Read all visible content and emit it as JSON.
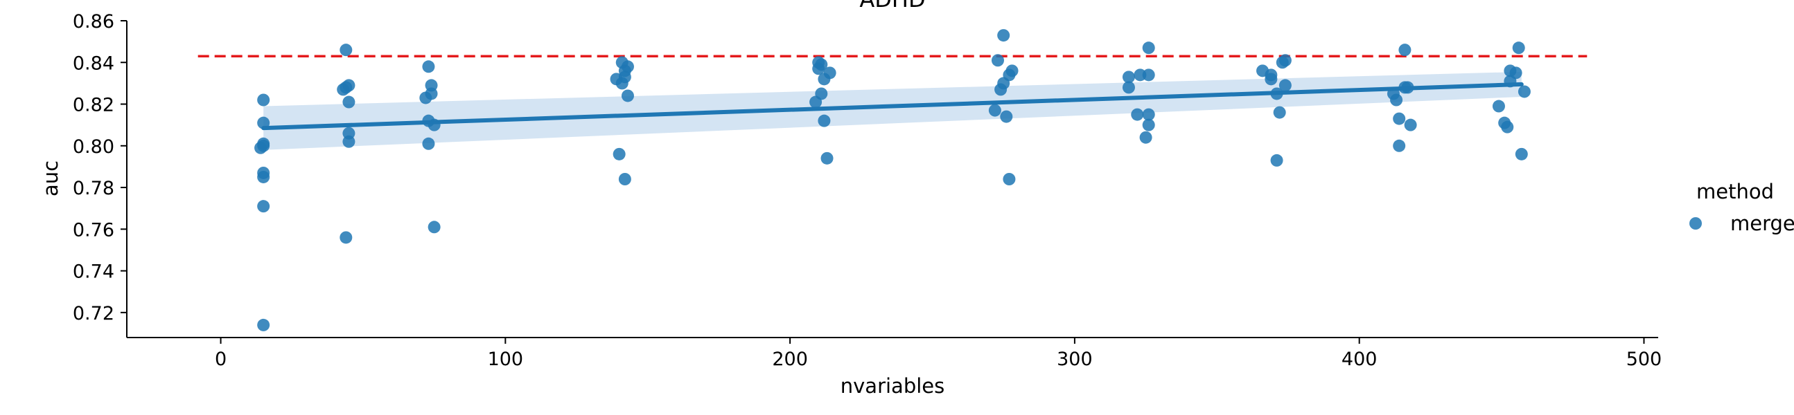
{
  "chart_data": {
    "type": "scatter",
    "title": "ADHD",
    "xlabel": "nvariables",
    "ylabel": "auc",
    "xlim": [
      -33,
      505
    ],
    "ylim": [
      0.708,
      0.86
    ],
    "xticks": [
      0,
      100,
      200,
      300,
      400,
      500
    ],
    "yticks": [
      0.72,
      0.74,
      0.76,
      0.78,
      0.8,
      0.82,
      0.84,
      0.86
    ],
    "grid": false,
    "legend": {
      "title": "method",
      "entries": [
        "merge"
      ],
      "position": "right"
    },
    "colors": {
      "points": "#1f77b4",
      "regression": "#1f77b4",
      "band": "#c6dbef",
      "reference": "#e41a1c"
    },
    "reference_line": {
      "y": 0.843,
      "x_range": [
        -8,
        480
      ],
      "style": "dashed"
    },
    "regression": {
      "x_range": [
        15,
        457
      ],
      "y_start": 0.8085,
      "y_end": 0.8295,
      "ci_start": [
        0.798,
        0.819
      ],
      "ci_end": [
        0.8235,
        0.8355
      ]
    },
    "series": [
      {
        "name": "merge",
        "points": [
          [
            15,
            0.714
          ],
          [
            15,
            0.771
          ],
          [
            15,
            0.785
          ],
          [
            15,
            0.787
          ],
          [
            14,
            0.799
          ],
          [
            15,
            0.8
          ],
          [
            15,
            0.801
          ],
          [
            15,
            0.811
          ],
          [
            15,
            0.822
          ],
          [
            44,
            0.756
          ],
          [
            45,
            0.802
          ],
          [
            45,
            0.806
          ],
          [
            45,
            0.821
          ],
          [
            43,
            0.827
          ],
          [
            44,
            0.828
          ],
          [
            45,
            0.829
          ],
          [
            44,
            0.846
          ],
          [
            75,
            0.761
          ],
          [
            73,
            0.801
          ],
          [
            73,
            0.812
          ],
          [
            75,
            0.81
          ],
          [
            72,
            0.823
          ],
          [
            74,
            0.825
          ],
          [
            74,
            0.829
          ],
          [
            73,
            0.838
          ],
          [
            142,
            0.784
          ],
          [
            140,
            0.796
          ],
          [
            139,
            0.832
          ],
          [
            141,
            0.83
          ],
          [
            142,
            0.833
          ],
          [
            142,
            0.836
          ],
          [
            143,
            0.838
          ],
          [
            141,
            0.84
          ],
          [
            143,
            0.824
          ],
          [
            213,
            0.794
          ],
          [
            212,
            0.812
          ],
          [
            211,
            0.825
          ],
          [
            209,
            0.821
          ],
          [
            212,
            0.832
          ],
          [
            214,
            0.835
          ],
          [
            210,
            0.837
          ],
          [
            211,
            0.839
          ],
          [
            210,
            0.84
          ],
          [
            277,
            0.784
          ],
          [
            276,
            0.814
          ],
          [
            272,
            0.817
          ],
          [
            274,
            0.827
          ],
          [
            275,
            0.83
          ],
          [
            277,
            0.834
          ],
          [
            278,
            0.836
          ],
          [
            273,
            0.841
          ],
          [
            275,
            0.853
          ],
          [
            325,
            0.804
          ],
          [
            326,
            0.81
          ],
          [
            322,
            0.815
          ],
          [
            326,
            0.815
          ],
          [
            319,
            0.828
          ],
          [
            319,
            0.833
          ],
          [
            323,
            0.834
          ],
          [
            326,
            0.834
          ],
          [
            326,
            0.847
          ],
          [
            371,
            0.793
          ],
          [
            372,
            0.816
          ],
          [
            371,
            0.825
          ],
          [
            374,
            0.829
          ],
          [
            369,
            0.832
          ],
          [
            369,
            0.834
          ],
          [
            366,
            0.836
          ],
          [
            373,
            0.84
          ],
          [
            374,
            0.841
          ],
          [
            414,
            0.8
          ],
          [
            414,
            0.813
          ],
          [
            418,
            0.81
          ],
          [
            413,
            0.822
          ],
          [
            412,
            0.825
          ],
          [
            416,
            0.828
          ],
          [
            417,
            0.828
          ],
          [
            416,
            0.846
          ],
          [
            457,
            0.796
          ],
          [
            452,
            0.809
          ],
          [
            451,
            0.811
          ],
          [
            449,
            0.819
          ],
          [
            458,
            0.826
          ],
          [
            453,
            0.831
          ],
          [
            453,
            0.836
          ],
          [
            455,
            0.835
          ],
          [
            456,
            0.847
          ]
        ]
      }
    ]
  }
}
